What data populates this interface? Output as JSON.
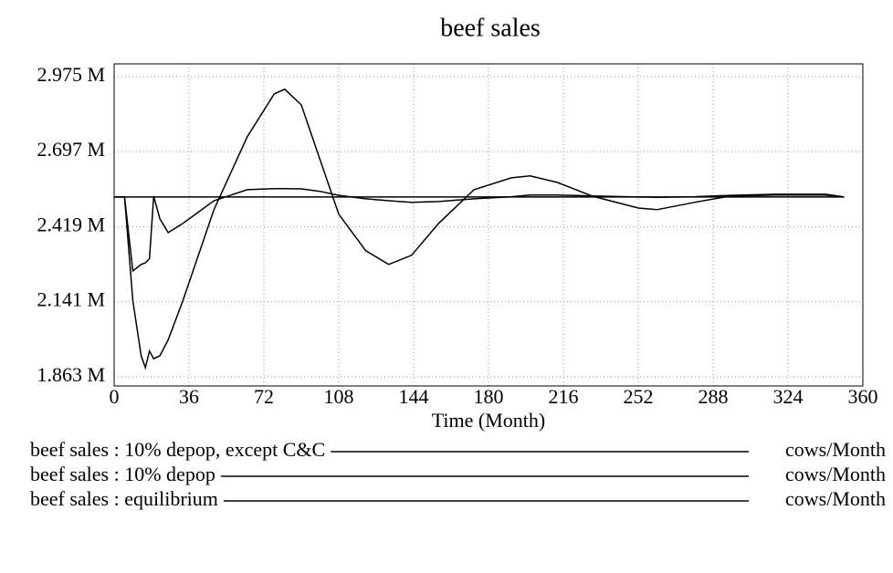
{
  "chart_data": {
    "type": "line",
    "title": "beef sales",
    "x_label": "Time (Month)",
    "x": [
      0,
      5,
      9,
      13,
      15,
      17,
      19,
      22,
      26,
      33,
      48,
      64,
      77,
      82,
      90,
      99,
      108,
      121,
      132,
      143,
      156,
      173,
      191,
      200,
      213,
      230,
      252,
      261,
      279,
      296,
      318,
      342,
      351
    ],
    "series": [
      {
        "name": "beef sales : 10% depop, except C&C",
        "unit": "cows/Month",
        "color": "#000000",
        "values": [
          2.529,
          2.529,
          2.255,
          2.279,
          2.285,
          2.3,
          2.532,
          2.448,
          2.397,
          2.431,
          2.515,
          2.556,
          2.56,
          2.56,
          2.559,
          2.55,
          2.535,
          2.522,
          2.515,
          2.509,
          2.512,
          2.522,
          2.53,
          2.536,
          2.536,
          2.533,
          2.529,
          2.528,
          2.53,
          2.535,
          2.539,
          2.539,
          2.529
        ]
      },
      {
        "name": "beef sales : 10% depop",
        "unit": "cows/Month",
        "color": "#000000",
        "values": [
          2.529,
          2.529,
          2.144,
          1.941,
          1.897,
          1.958,
          1.93,
          1.941,
          2.0,
          2.144,
          2.482,
          2.752,
          2.911,
          2.928,
          2.87,
          2.667,
          2.465,
          2.33,
          2.279,
          2.313,
          2.431,
          2.556,
          2.6,
          2.607,
          2.583,
          2.532,
          2.488,
          2.482,
          2.509,
          2.532,
          2.536,
          2.536,
          2.529
        ]
      },
      {
        "name": "beef sales : equilibrium",
        "unit": "cows/Month",
        "color": "#000000",
        "values": [
          2.529,
          2.529,
          2.529,
          2.529,
          2.529,
          2.529,
          2.529,
          2.529,
          2.529,
          2.529,
          2.529,
          2.529,
          2.529,
          2.529,
          2.529,
          2.529,
          2.529,
          2.529,
          2.529,
          2.529,
          2.529,
          2.529,
          2.529,
          2.529,
          2.529,
          2.529,
          2.529,
          2.529,
          2.529,
          2.529,
          2.529,
          2.529,
          2.529
        ]
      }
    ],
    "xlim": [
      0,
      360
    ],
    "xticks": [
      0,
      36,
      72,
      108,
      144,
      180,
      216,
      252,
      288,
      324,
      360
    ],
    "ylim": [
      1.829,
      3.022
    ],
    "yticks": [
      {
        "value": 1.863,
        "label": "1.863 M"
      },
      {
        "value": 2.141,
        "label": "2.141 M"
      },
      {
        "value": 2.419,
        "label": "2.419 M"
      },
      {
        "value": 2.697,
        "label": "2.697 M"
      },
      {
        "value": 2.975,
        "label": "2.975 M"
      }
    ],
    "grid": true
  }
}
